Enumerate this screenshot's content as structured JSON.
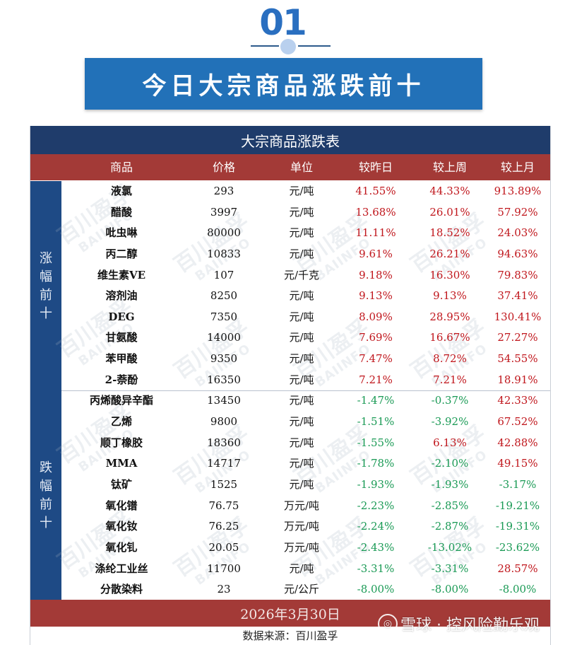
{
  "section": {
    "number": "01",
    "title": "今日大宗商品涨跌前十"
  },
  "table": {
    "title": "大宗商品涨跌表",
    "headers": {
      "name": "商品",
      "price": "价格",
      "unit": "单位",
      "day": "较昨日",
      "week": "较上周",
      "month": "较上月"
    },
    "groups": {
      "up_label": [
        "涨",
        "幅",
        "前",
        "十"
      ],
      "down_label": [
        "跌",
        "幅",
        "前",
        "十"
      ]
    },
    "rows_up": [
      {
        "name": "液氯",
        "price": "293",
        "unit": "元/吨",
        "day": "41.55%",
        "week": "44.33%",
        "month": "913.89%"
      },
      {
        "name": "醋酸",
        "price": "3997",
        "unit": "元/吨",
        "day": "13.68%",
        "week": "26.01%",
        "month": "57.92%"
      },
      {
        "name": "吡虫啉",
        "price": "80000",
        "unit": "元/吨",
        "day": "11.11%",
        "week": "18.52%",
        "month": "24.03%"
      },
      {
        "name": "丙二醇",
        "price": "10833",
        "unit": "元/吨",
        "day": "9.61%",
        "week": "26.21%",
        "month": "94.63%"
      },
      {
        "name": "维生素VE",
        "price": "107",
        "unit": "元/千克",
        "day": "9.18%",
        "week": "16.30%",
        "month": "79.83%"
      },
      {
        "name": "溶剂油",
        "price": "8250",
        "unit": "元/吨",
        "day": "9.13%",
        "week": "9.13%",
        "month": "37.41%"
      },
      {
        "name": "DEG",
        "price": "7350",
        "unit": "元/吨",
        "day": "8.09%",
        "week": "28.95%",
        "month": "130.41%"
      },
      {
        "name": "甘氨酸",
        "price": "14000",
        "unit": "元/吨",
        "day": "7.69%",
        "week": "16.67%",
        "month": "27.27%"
      },
      {
        "name": "苯甲酸",
        "price": "9350",
        "unit": "元/吨",
        "day": "7.47%",
        "week": "8.72%",
        "month": "54.55%"
      },
      {
        "name": "2-萘酚",
        "price": "16350",
        "unit": "元/吨",
        "day": "7.21%",
        "week": "7.21%",
        "month": "18.91%"
      }
    ],
    "rows_down": [
      {
        "name": "丙烯酸异辛酯",
        "price": "13450",
        "unit": "元/吨",
        "day": "-1.47%",
        "week": "-0.37%",
        "month": "42.33%"
      },
      {
        "name": "乙烯",
        "price": "9800",
        "unit": "元/吨",
        "day": "-1.51%",
        "week": "-3.92%",
        "month": "67.52%"
      },
      {
        "name": "顺丁橡胶",
        "price": "18360",
        "unit": "元/吨",
        "day": "-1.55%",
        "week": "6.13%",
        "month": "42.88%"
      },
      {
        "name": "MMA",
        "price": "14717",
        "unit": "元/吨",
        "day": "-1.78%",
        "week": "-2.10%",
        "month": "49.15%"
      },
      {
        "name": "钛矿",
        "price": "1525",
        "unit": "元/吨",
        "day": "-1.93%",
        "week": "-1.93%",
        "month": "-3.17%"
      },
      {
        "name": "氧化镨",
        "price": "76.75",
        "unit": "万元/吨",
        "day": "-2.23%",
        "week": "-2.85%",
        "month": "-19.21%"
      },
      {
        "name": "氧化钕",
        "price": "76.25",
        "unit": "万元/吨",
        "day": "-2.24%",
        "week": "-2.87%",
        "month": "-19.31%"
      },
      {
        "name": "氧化钆",
        "price": "20.05",
        "unit": "万元/吨",
        "day": "-2.43%",
        "week": "-13.02%",
        "month": "-23.62%"
      },
      {
        "name": "涤纶工业丝",
        "price": "11700",
        "unit": "元/吨",
        "day": "-3.31%",
        "week": "-3.31%",
        "month": "28.57%"
      },
      {
        "name": "分散染料",
        "price": "23",
        "unit": "元/公斤",
        "day": "-8.00%",
        "week": "-8.00%",
        "month": "-8.00%"
      }
    ],
    "date": "2026年3月30日",
    "source": "数据来源：百川盈孚"
  },
  "watermark": {
    "text": "百川盈孚",
    "subtext": "BAIINFO",
    "overlay": "雪球 · 控风险勤乐观"
  },
  "colors": {
    "positive": "#c0161c",
    "negative": "#1a9a55",
    "navy": "#1f3c6b",
    "red_header": "#a33a37",
    "banner_blue": "#2271b8"
  }
}
